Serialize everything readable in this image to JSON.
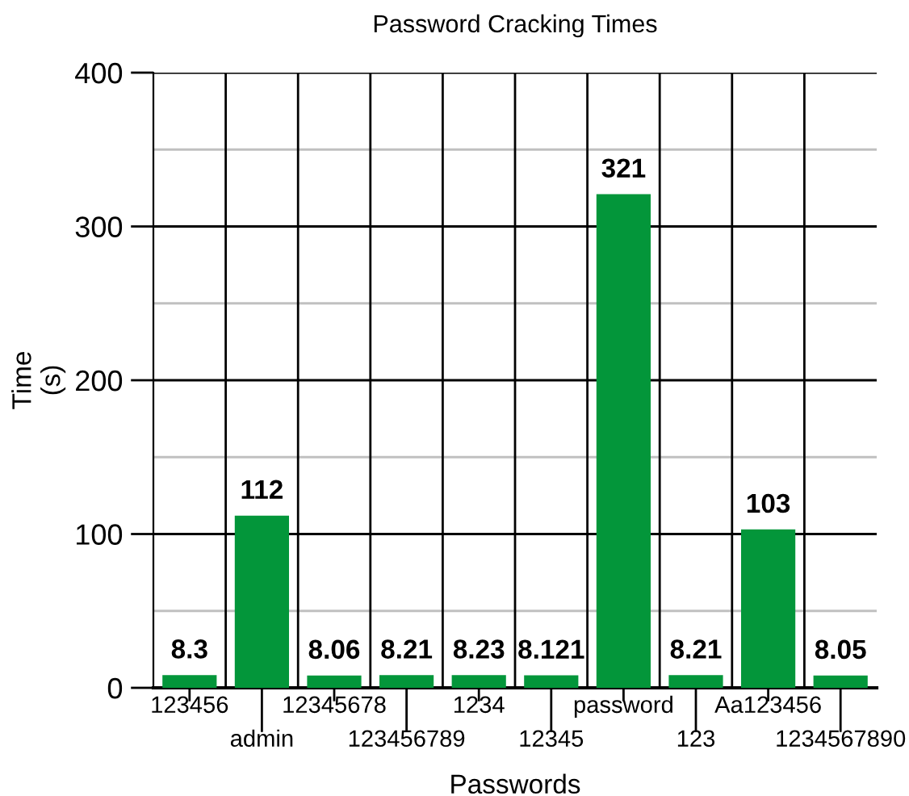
{
  "chart_data": {
    "type": "bar",
    "title": "Password Cracking Times",
    "xlabel": "Passwords",
    "ylabel": "Time\n(s)",
    "categories": [
      "123456",
      "admin",
      "12345678",
      "123456789",
      "1234",
      "12345",
      "password",
      "123",
      "Aa123456",
      "1234567890"
    ],
    "values": [
      8.3,
      112,
      8.06,
      8.21,
      8.23,
      8.121,
      321,
      8.21,
      103,
      8.05
    ],
    "color": "#03963a",
    "ylim": [
      0,
      400
    ],
    "yticks": [
      0,
      {
        "value": 50,
        "label": null
      },
      100,
      {
        "value": 150,
        "label": null
      },
      200,
      {
        "value": 250,
        "label": null
      },
      300,
      {
        "value": 350,
        "label": null
      },
      400
    ],
    "grid": true,
    "data_labels": true,
    "legend": false
  }
}
